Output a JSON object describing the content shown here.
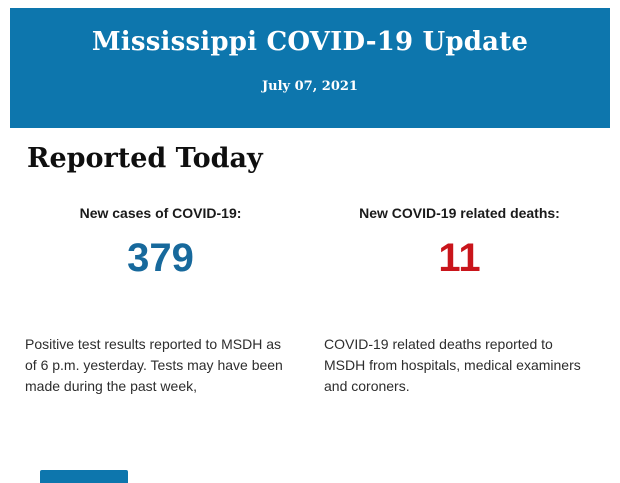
{
  "header": {
    "title": "Mississippi COVID-19 Update",
    "date": "July 07, 2021",
    "bg_color": "#0d76ad"
  },
  "section": {
    "heading": "Reported Today"
  },
  "stats": {
    "cases": {
      "label": "New cases of COVID-19:",
      "value": "379",
      "value_color": "#17699c",
      "description": "Positive test results reported to MSDH as of 6 p.m. yesterday. Tests may have been made during the past week,"
    },
    "deaths": {
      "label": "New COVID-19 related deaths:",
      "value": "11",
      "value_color": "#c9151b",
      "description": "COVID-19 related deaths reported to MSDH from hospitals, medical examiners and coroners."
    }
  },
  "footer": {
    "cutoff_bar_color": "#0d76ad"
  }
}
